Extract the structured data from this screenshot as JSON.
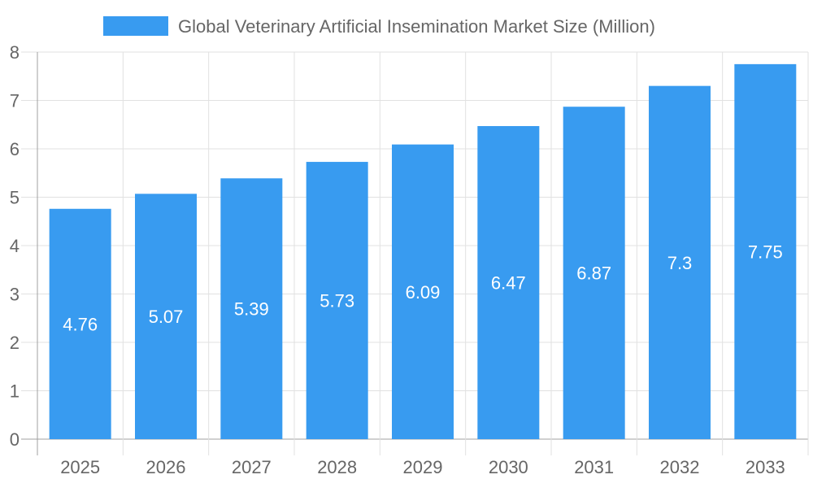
{
  "chart_data": {
    "type": "bar",
    "title": "",
    "legend": {
      "entries": [
        "Global Veterinary Artificial Insemination Market Size (Million)"
      ],
      "placement": "top"
    },
    "categories": [
      "2025",
      "2026",
      "2027",
      "2028",
      "2029",
      "2030",
      "2031",
      "2032",
      "2033"
    ],
    "series": [
      {
        "name": "Global Veterinary Artificial Insemination Market Size (Million)",
        "values": [
          4.76,
          5.07,
          5.39,
          5.73,
          6.09,
          6.47,
          6.87,
          7.3,
          7.75
        ],
        "data_labels": [
          "4.76",
          "5.07",
          "5.39",
          "5.73",
          "6.09",
          "6.47",
          "6.87",
          "7.3",
          "7.75"
        ]
      }
    ],
    "xlabel": "",
    "ylabel": "",
    "ylim": [
      0,
      8
    ],
    "yticks": [
      "0",
      "1",
      "2",
      "3",
      "4",
      "5",
      "6",
      "7",
      "8"
    ],
    "grid": true,
    "colors": {
      "bar": "#389bf0",
      "grid": "#e1e1e1",
      "axis": "#a0a0a0",
      "text": "#666666",
      "label": "#ffffff"
    }
  }
}
